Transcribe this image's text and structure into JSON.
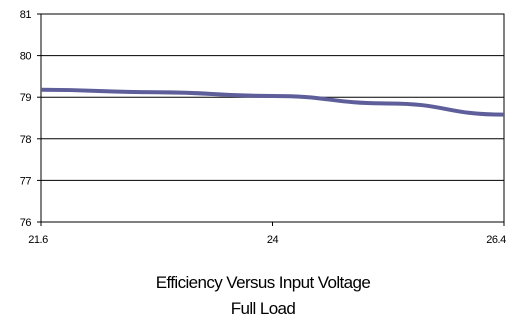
{
  "chart_data": {
    "type": "line",
    "title": "Efficiency Versus Input Voltage",
    "subtitle": "Full Load",
    "xlabel": "",
    "ylabel": "",
    "x_ticks": [
      "21.6",
      "24",
      "26.4"
    ],
    "y_ticks": [
      "76",
      "77",
      "78",
      "79",
      "80",
      "81"
    ],
    "xlim": [
      21.6,
      26.4
    ],
    "ylim": [
      76,
      81
    ],
    "grid": "horizontal",
    "legend": "none",
    "series": [
      {
        "color": "#5e5e9a",
        "x": [
          21.6,
          22.8,
          24,
          25.2,
          26.4
        ],
        "y": [
          79.18,
          79.12,
          79.03,
          78.85,
          78.58
        ]
      }
    ]
  }
}
